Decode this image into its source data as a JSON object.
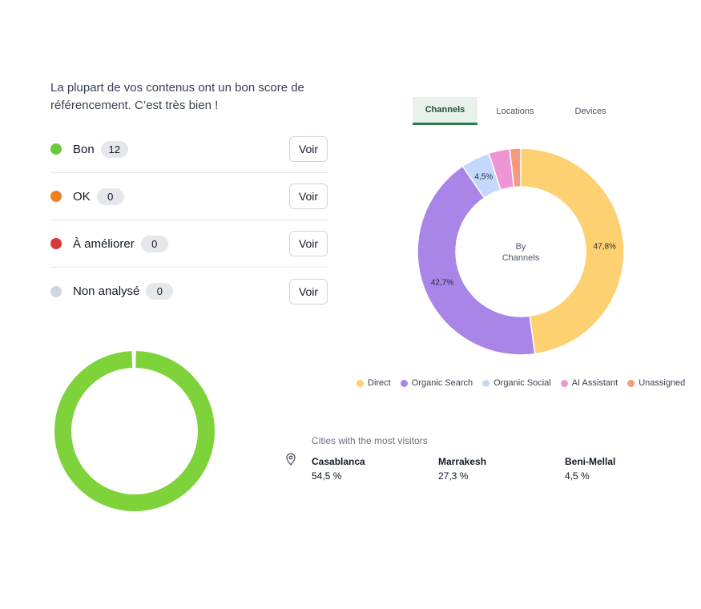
{
  "seo": {
    "intro_line1": "La plupart de vos contenus ont un bon score de",
    "intro_line2": "référencement. C’est très bien !",
    "rows": [
      {
        "label": "Bon",
        "count": "12",
        "button": "Voir",
        "color": "#6cc93b"
      },
      {
        "label": "OK",
        "count": "0",
        "button": "Voir",
        "color": "#f07f22"
      },
      {
        "label": "À améliorer",
        "count": "0",
        "button": "Voir",
        "color": "#d93838"
      },
      {
        "label": "Non analysé",
        "count": "0",
        "button": "Voir",
        "color": "#cdd6e1"
      }
    ],
    "ring_color": "#7ed23a"
  },
  "tabs": [
    {
      "label": "Channels",
      "active": true
    },
    {
      "label": "Locations",
      "active": false
    },
    {
      "label": "Devices",
      "active": false
    }
  ],
  "chart_data": {
    "type": "pie",
    "center_label_line1": "By",
    "center_label_line2": "Channels",
    "slices": [
      {
        "name": "Direct",
        "value": 47.8,
        "label": "47,8%",
        "color": "#fdd072"
      },
      {
        "name": "Organic Search",
        "value": 42.7,
        "label": "42,7%",
        "color": "#a885e6"
      },
      {
        "name": "Organic Social",
        "value": 4.5,
        "label": "4,5%",
        "color": "#c3d8fa"
      },
      {
        "name": "AI Assistant",
        "value": 3.3,
        "label": "",
        "color": "#ee95d6"
      },
      {
        "name": "Unassigned",
        "value": 1.7,
        "label": "",
        "color": "#f59a7c"
      }
    ],
    "legend_placement": "bottom"
  },
  "cities": {
    "title": "Cities with the most visitors",
    "items": [
      {
        "name": "Casablanca",
        "pct": "54,5 %"
      },
      {
        "name": "Marrakesh",
        "pct": "27,3 %"
      },
      {
        "name": "Beni-Mellal",
        "pct": "4,5 %"
      }
    ]
  }
}
